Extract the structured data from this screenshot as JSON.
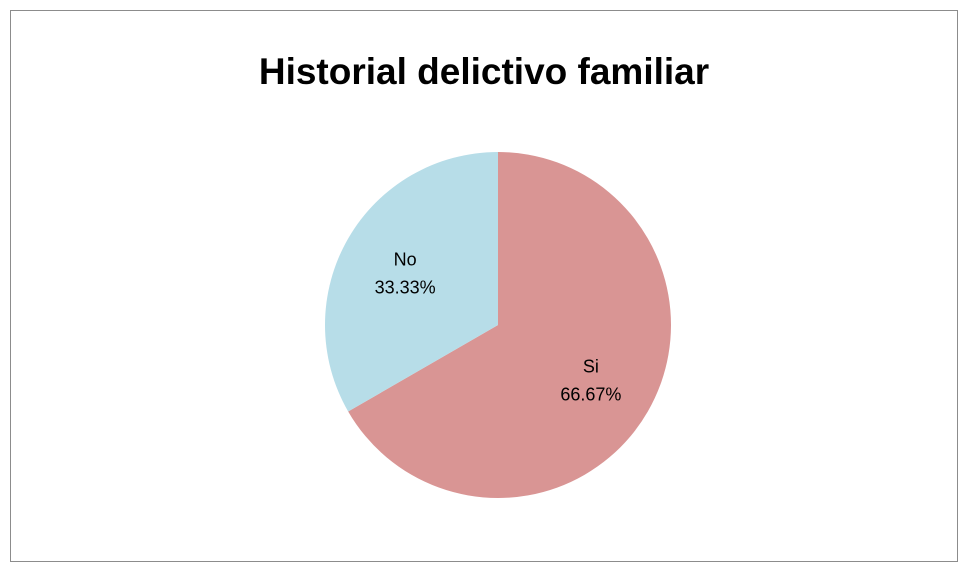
{
  "chart_data": {
    "type": "pie",
    "title": "Historial delictivo familiar",
    "categories": [
      "Si",
      "No"
    ],
    "values": [
      66.67,
      33.33
    ],
    "value_labels": [
      "66.67%",
      "33.33%"
    ],
    "colors": [
      "#D99594",
      "#B7DDE8"
    ],
    "legend": "none"
  }
}
